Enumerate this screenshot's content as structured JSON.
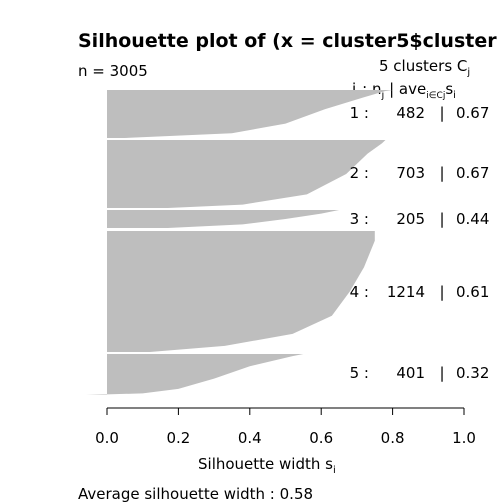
{
  "chart_data": {
    "type": "silhouette",
    "title": "Silhouette plot of (x = cluster5$cluster",
    "n_label": "n = 3005",
    "clusters_header": "5 clusters C",
    "clusters_header_sub": "j",
    "column_header": {
      "j": "j",
      "n": "n",
      "n_sub": "j",
      "ave": "ave",
      "ave_sub": "i∈Cj",
      "s": "s",
      "s_sub": "i"
    },
    "xlabel": "Silhouette width s",
    "xlabel_sub": "i",
    "xlim": [
      0.0,
      1.0
    ],
    "xticks": [
      "0.0",
      "0.2",
      "0.4",
      "0.6",
      "0.8",
      "1.0"
    ],
    "bar_color": "#bebebe",
    "average_text": "Average silhouette width :  0.58",
    "clusters": [
      {
        "j": "1 :",
        "n": "482",
        "ave": "0.67",
        "profile": [
          [
            0,
            0.8
          ],
          [
            0.02,
            0.78
          ],
          [
            0.15,
            0.72
          ],
          [
            0.4,
            0.61
          ],
          [
            0.7,
            0.5
          ],
          [
            0.9,
            0.35
          ],
          [
            1.0,
            0.05
          ]
        ]
      },
      {
        "j": "2 :",
        "n": "703",
        "ave": "0.67",
        "profile": [
          [
            0,
            0.78
          ],
          [
            0.05,
            0.77
          ],
          [
            0.2,
            0.73
          ],
          [
            0.5,
            0.67
          ],
          [
            0.8,
            0.56
          ],
          [
            0.95,
            0.38
          ],
          [
            1.0,
            0.17
          ]
        ]
      },
      {
        "j": "3 :",
        "n": "205",
        "ave": "0.44",
        "profile": [
          [
            0,
            0.65
          ],
          [
            0.2,
            0.6
          ],
          [
            0.5,
            0.5
          ],
          [
            0.8,
            0.38
          ],
          [
            1.0,
            0.17
          ]
        ]
      },
      {
        "j": "4 :",
        "n": "1214",
        "ave": "0.61",
        "profile": [
          [
            0,
            0.75
          ],
          [
            0.08,
            0.75
          ],
          [
            0.3,
            0.72
          ],
          [
            0.5,
            0.68
          ],
          [
            0.7,
            0.63
          ],
          [
            0.85,
            0.52
          ],
          [
            0.95,
            0.33
          ],
          [
            1.0,
            0.12
          ]
        ]
      },
      {
        "j": "5 :",
        "n": "401",
        "ave": "0.32",
        "profile": [
          [
            0,
            0.55
          ],
          [
            0.05,
            0.52
          ],
          [
            0.3,
            0.4
          ],
          [
            0.6,
            0.3
          ],
          [
            0.85,
            0.2
          ],
          [
            0.96,
            0.1
          ],
          [
            0.985,
            0.0
          ],
          [
            1.0,
            -0.06
          ]
        ]
      }
    ]
  }
}
